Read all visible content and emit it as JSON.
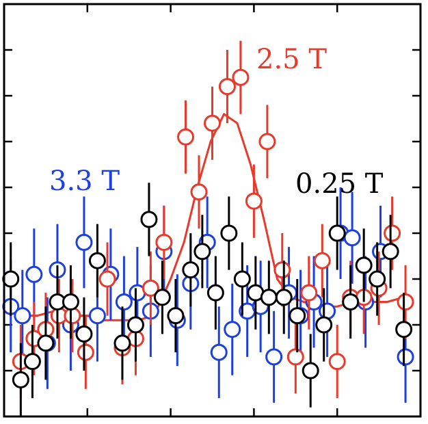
{
  "chart_data": {
    "type": "scatter",
    "title": "",
    "xlabel": "",
    "ylabel": "",
    "xlim": [
      0,
      25
    ],
    "ylim": [
      0,
      9
    ],
    "x_ticks": [
      5,
      10,
      15,
      20
    ],
    "y_ticks": [
      1,
      2,
      3,
      4,
      5,
      6,
      7,
      8
    ],
    "grid": false,
    "legend": "none",
    "series": [
      {
        "name": "2.5 T",
        "color": "#e8392a",
        "points": [
          {
            "x": 1.0,
            "y": 1.2,
            "err": 0.8
          },
          {
            "x": 1.8,
            "y": 1.7,
            "err": 0.8
          },
          {
            "x": 2.5,
            "y": 1.9,
            "err": 0.8
          },
          {
            "x": 3.3,
            "y": 2.2,
            "err": 0.8
          },
          {
            "x": 4.1,
            "y": 2.2,
            "err": 0.8
          },
          {
            "x": 4.9,
            "y": 1.4,
            "err": 0.8
          },
          {
            "x": 6.2,
            "y": 3.0,
            "err": 0.8
          },
          {
            "x": 7.1,
            "y": 1.5,
            "err": 0.8
          },
          {
            "x": 7.9,
            "y": 1.7,
            "err": 0.8
          },
          {
            "x": 8.8,
            "y": 2.8,
            "err": 0.8
          },
          {
            "x": 9.6,
            "y": 3.8,
            "err": 0.8
          },
          {
            "x": 10.9,
            "y": 6.1,
            "err": 0.8
          },
          {
            "x": 11.7,
            "y": 4.9,
            "err": 0.8
          },
          {
            "x": 12.5,
            "y": 6.4,
            "err": 0.8
          },
          {
            "x": 13.4,
            "y": 7.2,
            "err": 0.8
          },
          {
            "x": 14.2,
            "y": 7.4,
            "err": 0.8
          },
          {
            "x": 15.0,
            "y": 4.7,
            "err": 0.8
          },
          {
            "x": 15.8,
            "y": 6.0,
            "err": 0.8
          },
          {
            "x": 16.7,
            "y": 3.2,
            "err": 0.8
          },
          {
            "x": 17.5,
            "y": 1.3,
            "err": 0.8
          },
          {
            "x": 18.3,
            "y": 2.7,
            "err": 0.8
          },
          {
            "x": 19.1,
            "y": 3.4,
            "err": 0.8
          },
          {
            "x": 20.0,
            "y": 1.2,
            "err": 0.8
          },
          {
            "x": 20.8,
            "y": 2.6,
            "err": 0.8
          },
          {
            "x": 21.6,
            "y": 2.6,
            "err": 0.8
          },
          {
            "x": 22.5,
            "y": 2.8,
            "err": 0.8
          },
          {
            "x": 23.3,
            "y": 4.0,
            "err": 0.8
          },
          {
            "x": 24.1,
            "y": 2.5,
            "err": 0.8
          }
        ]
      },
      {
        "name": "3.3 T",
        "color": "#1c3fe0",
        "points": [
          {
            "x": 0.4,
            "y": 2.4,
            "err": 1.0
          },
          {
            "x": 1.1,
            "y": 2.2,
            "err": 1.0
          },
          {
            "x": 1.8,
            "y": 3.1,
            "err": 1.0
          },
          {
            "x": 2.6,
            "y": 1.6,
            "err": 1.0
          },
          {
            "x": 3.2,
            "y": 3.2,
            "err": 1.0
          },
          {
            "x": 4.0,
            "y": 2.0,
            "err": 1.0
          },
          {
            "x": 4.8,
            "y": 3.8,
            "err": 1.0
          },
          {
            "x": 5.6,
            "y": 2.2,
            "err": 1.0
          },
          {
            "x": 6.4,
            "y": 3.1,
            "err": 1.0
          },
          {
            "x": 7.2,
            "y": 2.5,
            "err": 1.0
          },
          {
            "x": 8.0,
            "y": 2.7,
            "err": 1.0
          },
          {
            "x": 8.8,
            "y": 2.3,
            "err": 1.0
          },
          {
            "x": 9.6,
            "y": 3.6,
            "err": 1.0
          },
          {
            "x": 10.4,
            "y": 2.1,
            "err": 1.0
          },
          {
            "x": 11.2,
            "y": 2.9,
            "err": 1.0
          },
          {
            "x": 12.2,
            "y": 3.8,
            "err": 1.0
          },
          {
            "x": 12.9,
            "y": 1.4,
            "err": 1.0
          },
          {
            "x": 13.7,
            "y": 1.9,
            "err": 1.0
          },
          {
            "x": 14.6,
            "y": 2.3,
            "err": 1.0
          },
          {
            "x": 15.4,
            "y": 2.4,
            "err": 1.0
          },
          {
            "x": 16.2,
            "y": 1.3,
            "err": 1.0
          },
          {
            "x": 17.1,
            "y": 2.7,
            "err": 1.0
          },
          {
            "x": 17.8,
            "y": 2.2,
            "err": 1.0
          },
          {
            "x": 18.6,
            "y": 2.5,
            "err": 1.0
          },
          {
            "x": 19.4,
            "y": 2.3,
            "err": 1.0
          },
          {
            "x": 20.2,
            "y": 4.0,
            "err": 1.0
          },
          {
            "x": 20.9,
            "y": 3.9,
            "err": 1.0
          },
          {
            "x": 21.7,
            "y": 2.5,
            "err": 1.0
          },
          {
            "x": 22.6,
            "y": 3.6,
            "err": 1.0
          },
          {
            "x": 24.1,
            "y": 1.3,
            "err": 1.0
          }
        ]
      },
      {
        "name": "0.25 T",
        "color": "#000000",
        "points": [
          {
            "x": 0.4,
            "y": 3.0,
            "err": 0.8
          },
          {
            "x": 1.0,
            "y": 0.8,
            "err": 0.8
          },
          {
            "x": 1.7,
            "y": 1.2,
            "err": 0.8
          },
          {
            "x": 2.5,
            "y": 1.6,
            "err": 0.8
          },
          {
            "x": 3.2,
            "y": 2.5,
            "err": 0.8
          },
          {
            "x": 4.0,
            "y": 2.5,
            "err": 0.8
          },
          {
            "x": 4.8,
            "y": 1.8,
            "err": 0.8
          },
          {
            "x": 5.6,
            "y": 3.4,
            "err": 0.8
          },
          {
            "x": 7.1,
            "y": 1.6,
            "err": 0.8
          },
          {
            "x": 7.9,
            "y": 2.0,
            "err": 0.8
          },
          {
            "x": 8.7,
            "y": 4.3,
            "err": 0.8
          },
          {
            "x": 9.5,
            "y": 2.6,
            "err": 0.8
          },
          {
            "x": 10.3,
            "y": 2.2,
            "err": 0.8
          },
          {
            "x": 11.2,
            "y": 3.2,
            "err": 0.8
          },
          {
            "x": 11.9,
            "y": 3.6,
            "err": 0.8
          },
          {
            "x": 12.7,
            "y": 2.7,
            "err": 0.8
          },
          {
            "x": 13.5,
            "y": 4.0,
            "err": 0.8
          },
          {
            "x": 14.3,
            "y": 3.0,
            "err": 0.8
          },
          {
            "x": 15.1,
            "y": 2.7,
            "err": 0.8
          },
          {
            "x": 15.9,
            "y": 2.6,
            "err": 0.8
          },
          {
            "x": 16.8,
            "y": 2.6,
            "err": 0.8
          },
          {
            "x": 17.6,
            "y": 2.2,
            "err": 0.8
          },
          {
            "x": 18.4,
            "y": 1.0,
            "err": 0.8
          },
          {
            "x": 19.2,
            "y": 2.0,
            "err": 0.8
          },
          {
            "x": 20.0,
            "y": 4.0,
            "err": 0.8
          },
          {
            "x": 20.8,
            "y": 2.5,
            "err": 0.8
          },
          {
            "x": 21.6,
            "y": 3.3,
            "err": 0.8
          },
          {
            "x": 22.4,
            "y": 3.0,
            "err": 0.8
          },
          {
            "x": 23.2,
            "y": 3.6,
            "err": 0.8
          },
          {
            "x": 24.0,
            "y": 1.9,
            "err": 0.8
          }
        ]
      }
    ],
    "fit_line": {
      "series": "2.5 T",
      "color": "#e8392a",
      "x": [
        1.0,
        2.0,
        3.0,
        4.0,
        5.0,
        6.0,
        7.0,
        8.0,
        9.0,
        10.0,
        10.8,
        11.6,
        12.4,
        13.2,
        14.0,
        14.8,
        15.6,
        16.4,
        17.2,
        18.0,
        19.0,
        20.0,
        21.0,
        22.0,
        23.0,
        24.0
      ],
      "y": [
        2.2,
        2.2,
        2.3,
        2.2,
        2.2,
        2.1,
        2.1,
        2.1,
        2.2,
        3.0,
        3.8,
        5.0,
        6.0,
        6.6,
        6.4,
        5.5,
        4.3,
        3.0,
        2.6,
        2.5,
        2.4,
        2.4,
        2.5,
        2.5,
        2.5,
        2.6
      ]
    },
    "annotations": [
      {
        "text": "2.5 T",
        "color": "#e8392a"
      },
      {
        "text": "3.3 T",
        "color": "#1c3fe0"
      },
      {
        "text": "0.25 T",
        "color": "#000000"
      }
    ]
  }
}
